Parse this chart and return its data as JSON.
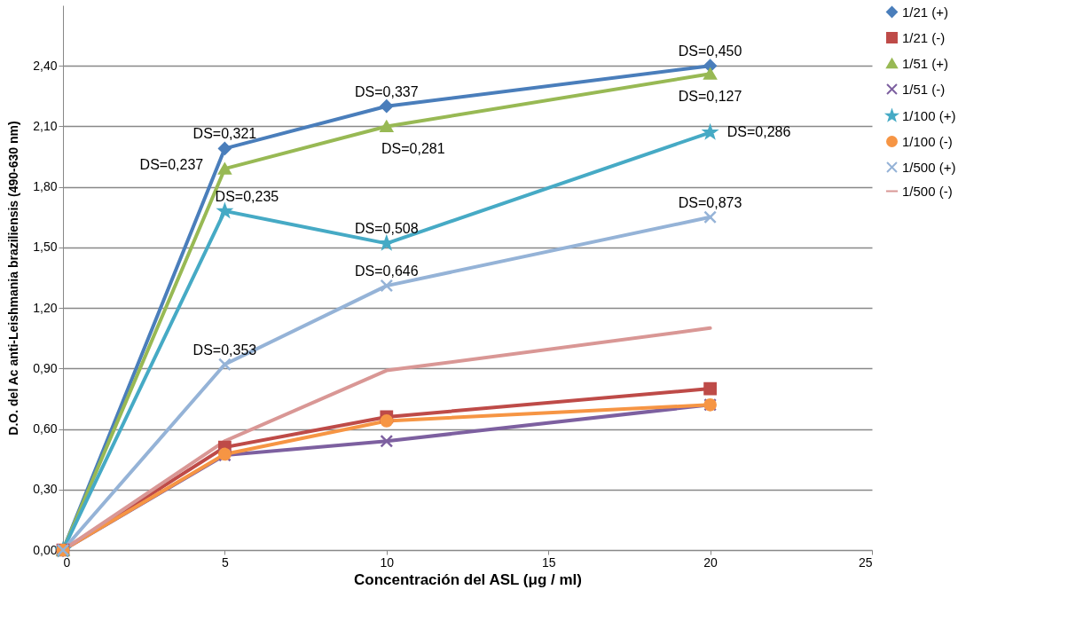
{
  "chart_data": {
    "type": "line",
    "xlabel": "Concentración del ASL (μg / ml)",
    "ylabel": "D.O. del Ac anti-Leishmania braziliensis (490-630 nm)",
    "x": [
      0,
      5,
      10,
      20
    ],
    "series": [
      {
        "name": "1/21 (+)",
        "color": "#4a7ebb",
        "marker": "diamond",
        "values": [
          0,
          1.99,
          2.2,
          2.4
        ]
      },
      {
        "name": "1/21 (-)",
        "color": "#be4b48",
        "marker": "square",
        "values": [
          0,
          0.51,
          0.66,
          0.8
        ]
      },
      {
        "name": "1/51 (+)",
        "color": "#98b954",
        "marker": "triangle",
        "values": [
          0,
          1.89,
          2.1,
          2.36
        ]
      },
      {
        "name": "1/51 (-)",
        "color": "#7d60a0",
        "marker": "cross",
        "values": [
          0,
          0.47,
          0.54,
          0.72
        ]
      },
      {
        "name": "1/100 (+)",
        "color": "#46aac5",
        "marker": "star",
        "values": [
          0,
          1.68,
          1.52,
          2.07
        ]
      },
      {
        "name": "1/100 (-)",
        "color": "#f69544",
        "marker": "circle",
        "values": [
          0,
          0.475,
          0.64,
          0.72
        ]
      },
      {
        "name": "1/500 (+)",
        "color": "#95b3d7",
        "marker": "cross",
        "values": [
          0,
          0.92,
          1.31,
          1.65
        ]
      },
      {
        "name": "1/500 (-)",
        "color": "#d99795",
        "marker": "none",
        "values": [
          0,
          0.54,
          0.89,
          1.1
        ]
      }
    ],
    "annotations": [
      {
        "text": "DS=0,321",
        "x": 5,
        "y": 1.99
      },
      {
        "text": "DS=0,337",
        "x": 10,
        "y": 2.2
      },
      {
        "text": "DS=0,450",
        "x": 20,
        "y": 2.4
      },
      {
        "text": "DS=0,237",
        "x": 5,
        "y": 1.89
      },
      {
        "text": "DS=0,281",
        "x": 10,
        "y": 2.1
      },
      {
        "text": "DS=0,127",
        "x": 20,
        "y": 2.36
      },
      {
        "text": "DS=0,235",
        "x": 5,
        "y": 1.68
      },
      {
        "text": "DS=0,508",
        "x": 10,
        "y": 1.52
      },
      {
        "text": "DS=0,286",
        "x": 20,
        "y": 2.07
      },
      {
        "text": "DS=0,353",
        "x": 5,
        "y": 0.92
      },
      {
        "text": "DS=0,646",
        "x": 10,
        "y": 1.31
      },
      {
        "text": "DS=0,873",
        "x": 20,
        "y": 1.65
      }
    ],
    "xlim": [
      0,
      25
    ],
    "xticks": [
      0,
      5,
      10,
      15,
      20,
      25
    ],
    "ylim": [
      0,
      2.7
    ],
    "yticks": [
      {
        "value": 0,
        "label": "0,00"
      },
      {
        "value": 0.3,
        "label": "0,30"
      },
      {
        "value": 0.6,
        "label": "0,60"
      },
      {
        "value": 0.9,
        "label": "0,90"
      },
      {
        "value": 1.2,
        "label": "1,20"
      },
      {
        "value": 1.5,
        "label": "1,50"
      },
      {
        "value": 1.8,
        "label": "1,80"
      },
      {
        "value": 2.1,
        "label": "2,10"
      },
      {
        "value": 2.4,
        "label": "2,40"
      }
    ],
    "grid": "y",
    "legend": "right"
  }
}
